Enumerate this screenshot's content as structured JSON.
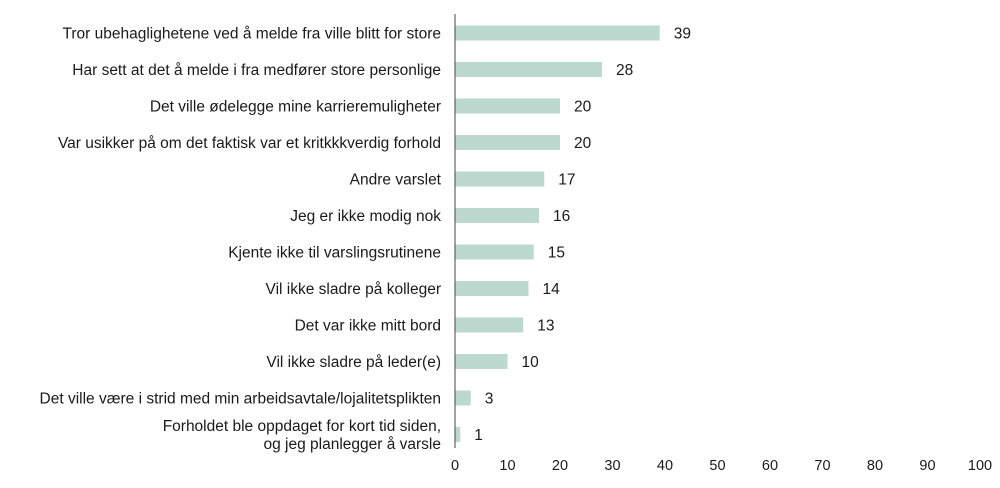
{
  "chart_data": {
    "type": "bar",
    "orientation": "horizontal",
    "categories": [
      [
        "Tror ubehaglighetene ved å melde fra ville blitt for store"
      ],
      [
        "Har sett at det å melde i fra medfører store personlige"
      ],
      [
        "Det ville ødelegge mine karrieremuligheter"
      ],
      [
        "Var usikker på om det faktisk var et kritkkkverdig forhold"
      ],
      [
        "Andre varslet"
      ],
      [
        "Jeg er ikke modig nok"
      ],
      [
        "Kjente ikke til varslingsrutinene"
      ],
      [
        "Vil ikke sladre på kolleger"
      ],
      [
        "Det var ikke mitt bord"
      ],
      [
        "Vil ikke sladre på leder(e)"
      ],
      [
        "Det ville være i strid med min arbeidsavtale/lojalitetsplikten"
      ],
      [
        "Forholdet ble oppdaget for kort tid siden,",
        "og jeg planlegger å varsle"
      ]
    ],
    "values": [
      39,
      28,
      20,
      20,
      17,
      16,
      15,
      14,
      13,
      10,
      3,
      1
    ],
    "data_labels": [
      "39",
      "28",
      "20",
      "20",
      "17",
      "16",
      "15",
      "14",
      "13",
      "10",
      "3",
      "1"
    ],
    "xlim": [
      0,
      100
    ],
    "xticks": [
      0,
      10,
      20,
      30,
      40,
      50,
      60,
      70,
      80,
      90,
      100
    ],
    "tick_labels": [
      "0",
      "10",
      "20",
      "30",
      "40",
      "50",
      "60",
      "70",
      "80",
      "90",
      "100"
    ],
    "grid": false,
    "bar_color": "#bcd9cf",
    "axis_color": "#444444"
  }
}
